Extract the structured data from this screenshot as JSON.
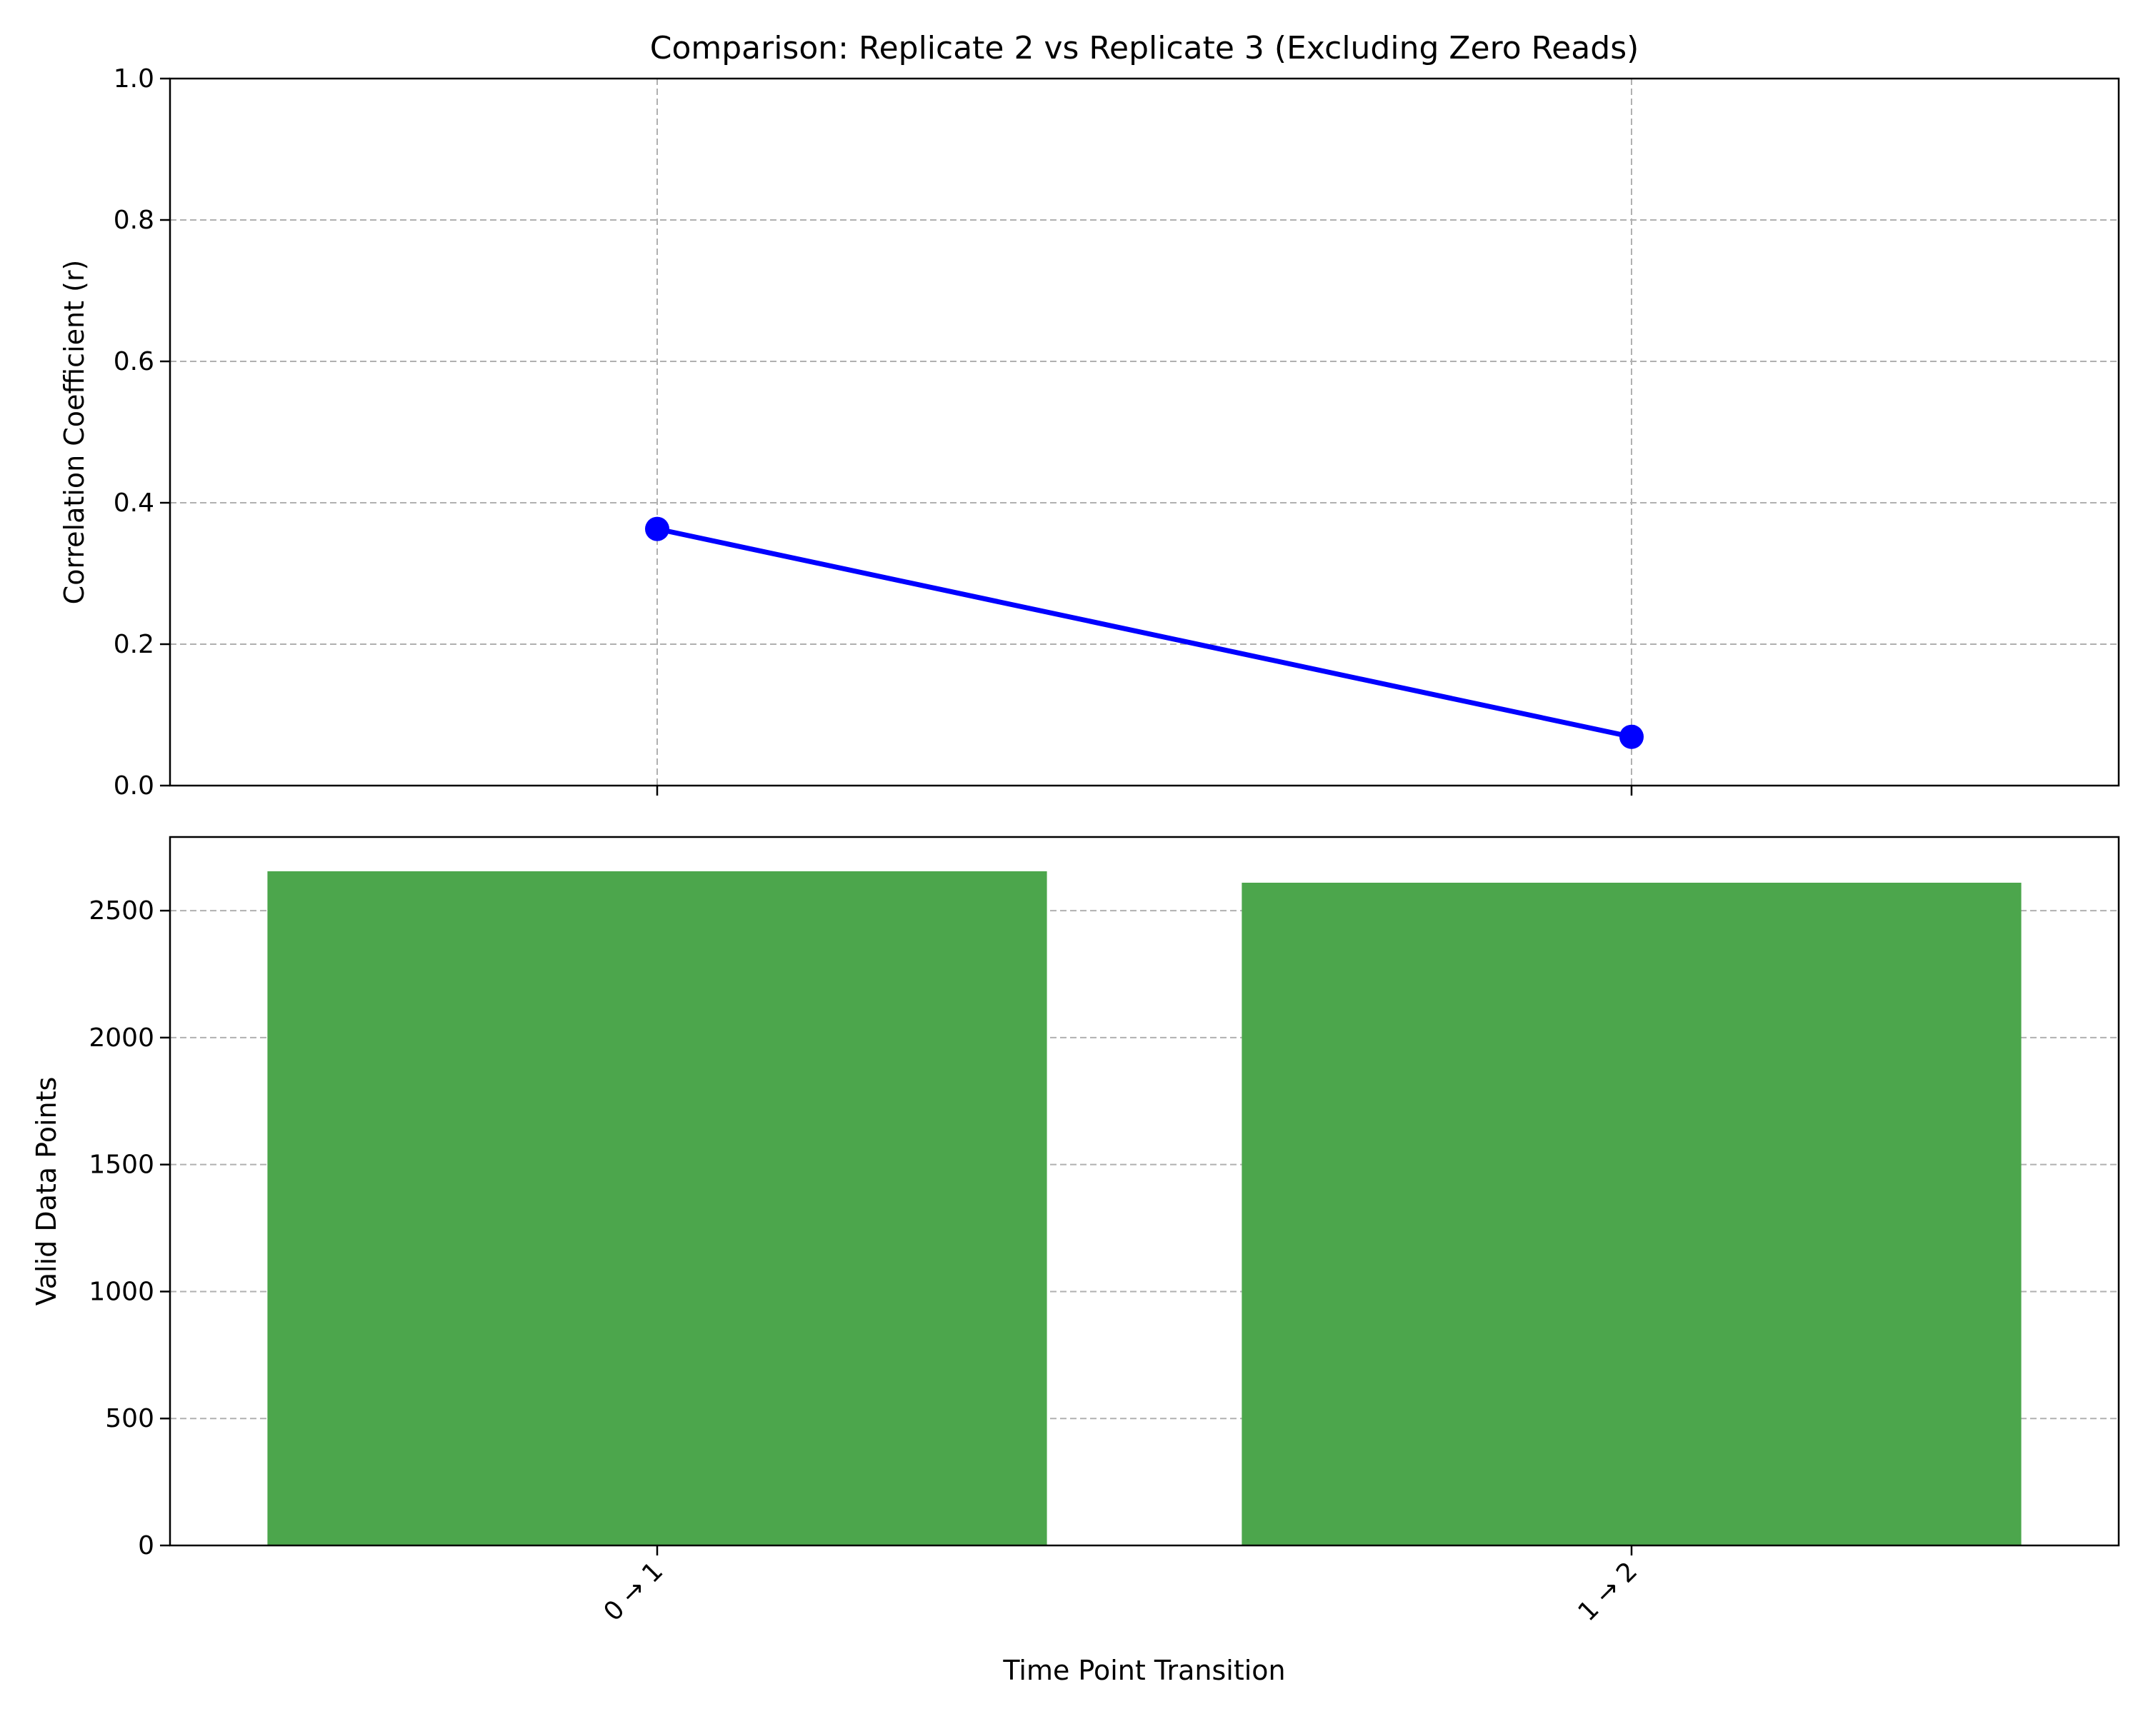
{
  "figure": {
    "title": "Comparison: Replicate 2 vs Replicate 3 (Excluding Zero Reads)"
  },
  "chart_data": [
    {
      "type": "line",
      "title": "Comparison: Replicate 2 vs Replicate 3 (Excluding Zero Reads)",
      "xlabel": "",
      "ylabel": "Correlation Coefficient (r)",
      "categories": [
        "0 → 1",
        "1 → 2"
      ],
      "series": [
        {
          "values": [
            0.363,
            0.069
          ]
        }
      ],
      "ylim": [
        0,
        1
      ],
      "yticks": [
        0.0,
        0.2,
        0.4,
        0.6,
        0.8,
        1.0
      ],
      "ytick_labels": [
        "0.0",
        "0.2",
        "0.4",
        "0.6",
        "0.8",
        "1.0"
      ],
      "grid": true,
      "grid_style": "dashed",
      "show_x_tick_labels": false,
      "color": "#0000ff",
      "marker": "circle"
    },
    {
      "type": "bar",
      "xlabel": "Time Point Transition",
      "ylabel": "Valid Data Points",
      "categories": [
        "0 → 1",
        "1 → 2"
      ],
      "values": [
        2655,
        2610
      ],
      "ylim": [
        0,
        2790
      ],
      "yticks": [
        0,
        500,
        1000,
        1500,
        2000,
        2500
      ],
      "ytick_labels": [
        "0",
        "500",
        "1000",
        "1500",
        "2000",
        "2500"
      ],
      "grid": true,
      "grid_axis": "y",
      "grid_style": "dashed",
      "color": "#4ca64c",
      "x_tick_rotation_deg": 45
    }
  ]
}
